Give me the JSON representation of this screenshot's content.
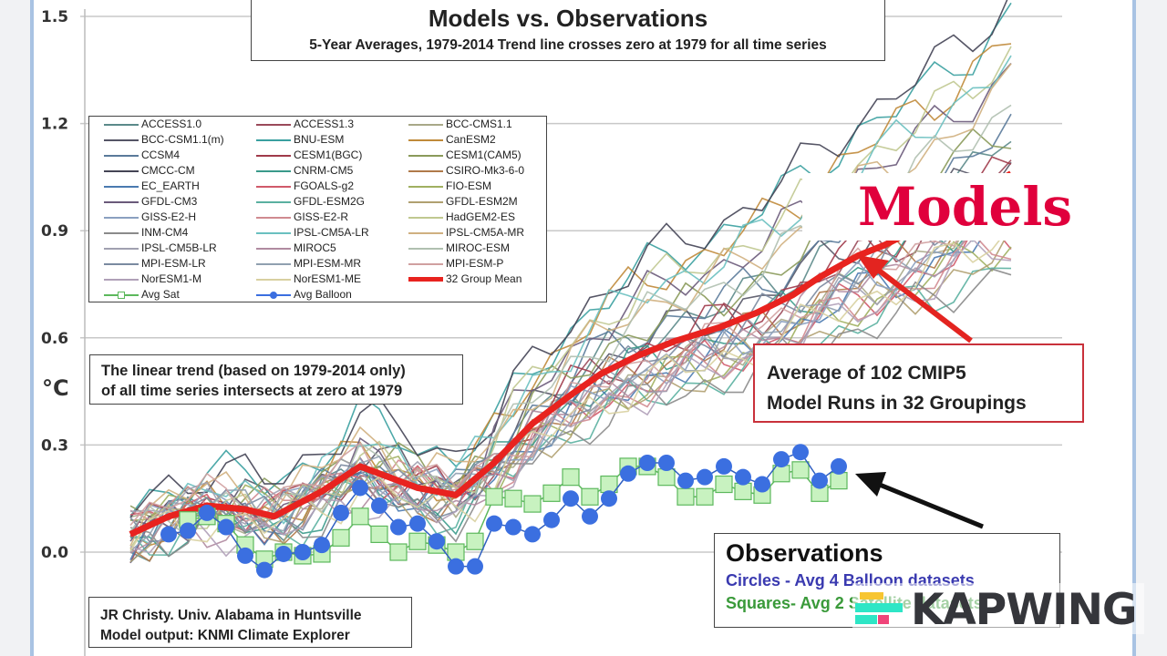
{
  "chart_data": {
    "type": "line",
    "title": "Models vs. Observations",
    "subtitle": "5-Year Averages, 1979-2014 Trend line crosses zero at 1979 for all time series",
    "ylabel": "°C",
    "ylim": [
      -0.3,
      1.5
    ],
    "xlim": [
      1976.6,
      2027.7
    ],
    "yticks": [
      "1.5",
      "1.2",
      "0.9",
      "0.6",
      "0.3",
      "0.0"
    ],
    "ytick_values": [
      1.5,
      1.2,
      0.9,
      0.6,
      0.3,
      0.0
    ],
    "grid": true,
    "legend_position": "top-left",
    "mean": {
      "name": "32 Group Mean",
      "color": "#e8231f",
      "x": [
        1979,
        1981,
        1983,
        1985,
        1986.5,
        1989,
        1991,
        1992,
        1994,
        1996,
        1998,
        2000,
        2002,
        2003.6,
        2005.5,
        2007.4,
        2009.8,
        2011.7,
        2013.6,
        2015,
        2017,
        2018.4,
        2021,
        2025
      ],
      "y": [
        0.05,
        0.1,
        0.13,
        0.12,
        0.1,
        0.17,
        0.24,
        0.22,
        0.18,
        0.16,
        0.25,
        0.36,
        0.44,
        0.5,
        0.55,
        0.59,
        0.63,
        0.67,
        0.72,
        0.77,
        0.83,
        0.86,
        0.93,
        1.06
      ]
    },
    "balloon": {
      "name": "Avg Balloon",
      "color": "#3b6fe0",
      "x_start": 1981,
      "y": [
        0.05,
        0.06,
        0.11,
        0.07,
        -0.01,
        -0.05,
        -0.005,
        0.0,
        0.02,
        0.11,
        0.18,
        0.13,
        0.07,
        0.08,
        0.03,
        -0.04,
        -0.04,
        0.08,
        0.07,
        0.05,
        0.09,
        0.15,
        0.1,
        0.15,
        0.22,
        0.25,
        0.25,
        0.2,
        0.21,
        0.24,
        0.21,
        0.19,
        0.26,
        0.28,
        0.2,
        0.24
      ]
    },
    "satellite": {
      "name": "Avg Sat",
      "color": "#5cb85c",
      "x_start": 1982,
      "y": [
        0.09,
        0.1,
        0.08,
        0.02,
        -0.02,
        0.0,
        -0.01,
        -0.005,
        0.04,
        0.1,
        0.05,
        0.0,
        0.03,
        0.02,
        0.0,
        0.03,
        0.155,
        0.15,
        0.135,
        0.165,
        0.21,
        0.155,
        0.19,
        0.24,
        0.24,
        0.21,
        0.155,
        0.155,
        0.19,
        0.17,
        0.16,
        0.22,
        0.23,
        0.165,
        0.2
      ]
    },
    "models": [
      {
        "name": "ACCESS1.0",
        "color": "#5b8a8a",
        "end": 1.15
      },
      {
        "name": "ACCESS1.3",
        "color": "#9a4a5a",
        "end": 1.05
      },
      {
        "name": "BCC-CMS1.1",
        "color": "#a8a888",
        "end": 0.95
      },
      {
        "name": "BCC-CSM1.1(m)",
        "color": "#555566",
        "end": 1.12
      },
      {
        "name": "BNU-ESM",
        "color": "#3aa0a0",
        "end": 1.5
      },
      {
        "name": "CanESM2",
        "color": "#c08a3a",
        "end": 1.44
      },
      {
        "name": "CCSM4",
        "color": "#5a7a9a",
        "end": 1.18
      },
      {
        "name": "CESM1(BGC)",
        "color": "#a03a4a",
        "end": 1.08
      },
      {
        "name": "CESM1(CAM5)",
        "color": "#8a9a5a",
        "end": 1.2
      },
      {
        "name": "CMCC-CM",
        "color": "#444455",
        "end": 1.55
      },
      {
        "name": "CNRM-CM5",
        "color": "#3a9a8a",
        "end": 1.0
      },
      {
        "name": "CSIRO-Mk3-6-0",
        "color": "#b07a4a",
        "end": 0.98
      },
      {
        "name": "EC_EARTH",
        "color": "#4a7ab0",
        "end": 0.92
      },
      {
        "name": "FGOALS-g2",
        "color": "#d05a6a",
        "end": 0.9
      },
      {
        "name": "FIO-ESM",
        "color": "#a0b060",
        "end": 0.88
      },
      {
        "name": "GFDL-CM3",
        "color": "#6a5a7a",
        "end": 1.35
      },
      {
        "name": "GFDL-ESM2G",
        "color": "#5ab0a0",
        "end": 0.82
      },
      {
        "name": "GFDL-ESM2M",
        "color": "#b0a070",
        "end": 0.85
      },
      {
        "name": "GISS-E2-H",
        "color": "#8aa0c0",
        "end": 0.95
      },
      {
        "name": "GISS-E2-R",
        "color": "#d08a90",
        "end": 0.88
      },
      {
        "name": "HadGEM2-ES",
        "color": "#c0c890",
        "end": 1.4
      },
      {
        "name": "INM-CM4",
        "color": "#8a8a8a",
        "end": 0.8
      },
      {
        "name": "IPSL-CM5A-LR",
        "color": "#6ac0c0",
        "end": 1.38
      },
      {
        "name": "IPSL-CM5A-MR",
        "color": "#d0b080",
        "end": 1.3
      },
      {
        "name": "IPSL-CM5B-LR",
        "color": "#a0a0b0",
        "end": 0.92
      },
      {
        "name": "MIROC5",
        "color": "#b08aa0",
        "end": 0.98
      },
      {
        "name": "MIROC-ESM",
        "color": "#b0c0b0",
        "end": 1.25
      },
      {
        "name": "MPI-ESM-LR",
        "color": "#7a8aa0",
        "end": 1.02
      },
      {
        "name": "MPI-ESM-MR",
        "color": "#90a0b0",
        "end": 0.97
      },
      {
        "name": "MPI-ESM-P",
        "color": "#d0a0a0",
        "end": 1.0
      },
      {
        "name": "NorESM1-M",
        "color": "#b0a0b8",
        "end": 0.86
      },
      {
        "name": "NorESM1-ME",
        "color": "#d8d0a0",
        "end": 0.9
      }
    ]
  },
  "annotations": {
    "trend_note": [
      "The linear trend (based on 1979-2014 only)",
      "of all time series intersects at zero at 1979"
    ],
    "credit": [
      "JR Christy. Univ. Alabama in Huntsville",
      "Model output: KNMI Climate Explorer"
    ],
    "models_label": "Models",
    "average_note": [
      "Average of 102 CMIP5",
      "Model Runs in 32 Groupings"
    ],
    "observations_title": "Observations",
    "circles_note": "Circles - Avg 4 Balloon datasets",
    "squares_note": "Squares- Avg 2 Satellite datasets"
  },
  "watermark": {
    "text": "KAPWING"
  }
}
